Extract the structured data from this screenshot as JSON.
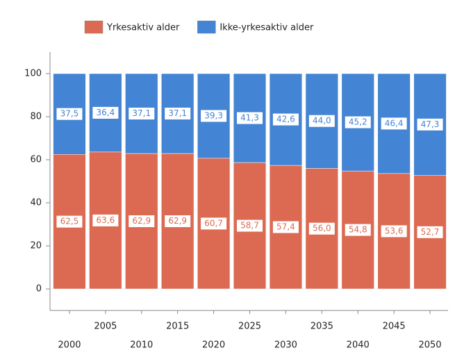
{
  "chart_data": {
    "type": "stacked_bar",
    "categories": [
      "2000",
      "2005",
      "2010",
      "2015",
      "2020",
      "2025",
      "2030",
      "2035",
      "2040",
      "2045",
      "2050"
    ],
    "series": [
      {
        "name": "Yrkesaktiv alder",
        "color": "#dc6a52",
        "values": [
          62.5,
          63.6,
          62.9,
          62.9,
          60.7,
          58.7,
          57.4,
          56.0,
          54.8,
          53.6,
          52.7
        ],
        "value_labels": [
          "62,5",
          "63,6",
          "62,9",
          "62,9",
          "60,7",
          "58,7",
          "57,4",
          "56,0",
          "54,8",
          "53,6",
          "52,7"
        ]
      },
      {
        "name": "Ikke-yrkesaktiv alder",
        "color": "#4484d4",
        "values": [
          37.5,
          36.4,
          37.1,
          37.1,
          39.3,
          41.3,
          42.6,
          44.0,
          45.2,
          46.4,
          47.3
        ],
        "value_labels": [
          "37,5",
          "36,4",
          "37,1",
          "37,1",
          "39,3",
          "41,3",
          "42,6",
          "44,0",
          "45,2",
          "46,4",
          "47,3"
        ]
      }
    ],
    "ylim": [
      -10,
      110
    ],
    "yticks": [
      0,
      20,
      40,
      60,
      80,
      100
    ],
    "legend": "top"
  }
}
